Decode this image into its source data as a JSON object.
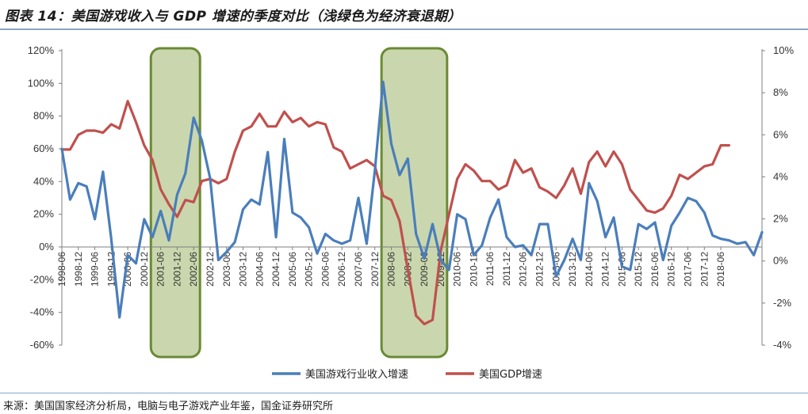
{
  "title": "图表 14：美国游戏收入与 GDP 增速的季度对比（浅绿色为经济衰退期）",
  "source": "来源：美国国家经济分析局，电脑与电子游戏产业年鉴，国金证券研究所",
  "chart_data": {
    "type": "line",
    "left_axis": {
      "ylim": [
        -60,
        120
      ],
      "ticks": [
        "120%",
        "100%",
        "80%",
        "60%",
        "40%",
        "20%",
        "0%",
        "-20%",
        "-40%",
        "-60%"
      ],
      "tick_values": [
        120,
        100,
        80,
        60,
        40,
        20,
        0,
        -20,
        -40,
        -60
      ]
    },
    "right_axis": {
      "ylim": [
        -4,
        10
      ],
      "ticks": [
        "10%",
        "8%",
        "6%",
        "4%",
        "2%",
        "0%",
        "-2%",
        "-4%"
      ],
      "tick_values": [
        10,
        8,
        6,
        4,
        2,
        0,
        -2,
        -4
      ]
    },
    "x_labels": [
      "1998-06",
      "1998-12",
      "1999-06",
      "1999-12",
      "2000-06",
      "2000-12",
      "2001-06",
      "2001-12",
      "2002-06",
      "2002-12",
      "2003-06",
      "2003-12",
      "2004-06",
      "2004-12",
      "2005-06",
      "2005-12",
      "2006-06",
      "2006-12",
      "2007-06",
      "2007-12",
      "2008-06",
      "2008-12",
      "2009-06",
      "2009-12",
      "2010-06",
      "2010-12",
      "2011-06",
      "2011-12",
      "2012-06",
      "2012-12",
      "2013-06",
      "2013-12",
      "2014-06",
      "2014-12",
      "2015-06",
      "2015-12",
      "2016-06",
      "2016-12",
      "2017-06",
      "2017-12",
      "2018-06"
    ],
    "x_start_quarter": "1998-06",
    "recessions": [
      {
        "start": "2001-03",
        "end": "2002-06"
      },
      {
        "start": "2008-03",
        "end": "2009-12"
      }
    ],
    "grid": false,
    "legend_position": "bottom",
    "series": [
      {
        "name": "美国游戏行业收入增速",
        "axis": "left",
        "color": "#4a7ebb",
        "values": [
          60,
          29,
          39,
          37,
          17,
          46,
          5,
          -43,
          -5,
          -10,
          17,
          6,
          22,
          4,
          32,
          45,
          79,
          65,
          42,
          -8,
          -3,
          3,
          23,
          29,
          26,
          58,
          6,
          66,
          21,
          18,
          12,
          -4,
          8,
          4,
          2,
          4,
          30,
          2,
          47,
          101,
          63,
          44,
          54,
          8,
          -7,
          14,
          -8,
          -14,
          20,
          17,
          -5,
          1,
          18,
          29,
          6,
          0,
          1,
          -5,
          14,
          14,
          -18,
          -8,
          5,
          -8,
          39,
          28,
          6,
          18,
          -12,
          -14,
          14,
          11,
          15,
          -8,
          13,
          21,
          30,
          28,
          21,
          7,
          5,
          4,
          2,
          3,
          -5,
          9
        ]
      },
      {
        "name": "美国GDP增速",
        "axis": "right",
        "color": "#c0504d",
        "values": [
          5.3,
          5.3,
          6.0,
          6.2,
          6.2,
          6.1,
          6.5,
          6.3,
          7.6,
          6.6,
          5.5,
          4.8,
          3.4,
          2.7,
          2.1,
          2.9,
          2.8,
          3.8,
          3.9,
          3.7,
          3.9,
          5.2,
          6.2,
          6.4,
          7.0,
          6.4,
          6.4,
          7.1,
          6.6,
          6.8,
          6.4,
          6.6,
          6.5,
          5.4,
          5.2,
          4.4,
          4.6,
          4.8,
          4.5,
          3.1,
          2.9,
          1.9,
          -0.4,
          -2.6,
          -3.0,
          -2.8,
          0.5,
          2.2,
          3.9,
          4.6,
          4.3,
          3.8,
          3.8,
          3.4,
          3.6,
          4.8,
          4.2,
          4.4,
          3.5,
          3.3,
          3.0,
          3.6,
          4.4,
          3.2,
          4.7,
          5.2,
          4.5,
          5.2,
          4.6,
          3.4,
          2.9,
          2.4,
          2.3,
          2.5,
          3.1,
          4.1,
          3.9,
          4.2,
          4.5,
          4.6,
          5.5,
          5.5
        ]
      }
    ],
    "legend": [
      {
        "label": "美国游戏行业收入增速",
        "color": "#4a7ebb"
      },
      {
        "label": "美国GDP增速",
        "color": "#c0504d"
      }
    ]
  }
}
